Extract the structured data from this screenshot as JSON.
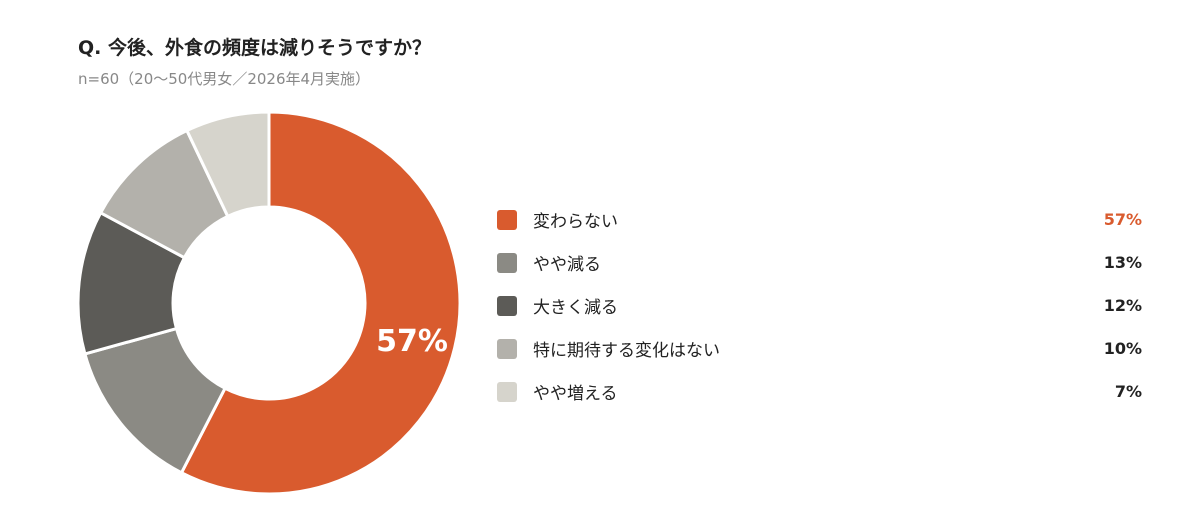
{
  "title": "Q. 今後、外食の頻度は減りそうですか？",
  "subtitle": "n=60（20〜50代男女／2026年4月実施）",
  "highlight_color": "#d95b2e",
  "chart_data": {
    "type": "pie",
    "style": "donut",
    "title": "Q. 今後、外食の頻度は減りそうですか？",
    "subtitle": "n=60（20〜50代男女／2026年4月実施）",
    "categories": [
      "変わらない",
      "やや減る",
      "大きく減る",
      "特に期待する変化はない",
      "やや増える"
    ],
    "values": [
      57,
      13,
      12,
      10,
      7
    ],
    "unit": "%",
    "value_labels": [
      "57%",
      "13%",
      "12%",
      "10%",
      "7%"
    ],
    "colors": [
      "#d95b2e",
      "#8b8a84",
      "#5c5b57",
      "#b3b1ab",
      "#d6d4cc"
    ],
    "center_annotation": "57%",
    "legend_position": "right"
  }
}
